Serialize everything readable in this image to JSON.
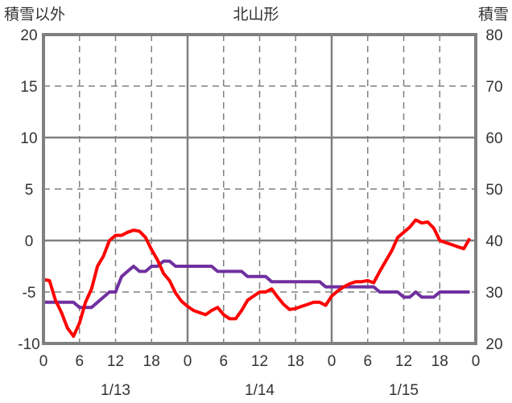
{
  "chart_data": {
    "type": "line",
    "title": "北山形",
    "left_axis_label": "積雪以外",
    "right_axis_label": "積雪",
    "left_ylim": [
      -10,
      20
    ],
    "right_ylim": [
      20,
      80
    ],
    "left_ticks": [
      "20",
      "15",
      "10",
      "5",
      "0",
      "-5",
      "-10"
    ],
    "right_ticks": [
      "80",
      "70",
      "60",
      "50",
      "40",
      "30",
      "20"
    ],
    "x_ticks": [
      "0",
      "6",
      "12",
      "18",
      "0",
      "6",
      "12",
      "18",
      "0",
      "6",
      "12",
      "18",
      "0"
    ],
    "date_labels": [
      "1/13",
      "1/14",
      "1/15"
    ],
    "xlim_hours": [
      0,
      72
    ],
    "grid": true,
    "series": [
      {
        "name": "積雪以外",
        "axis": "left",
        "color": "#ff0000",
        "values": [
          -3.8,
          -3.9,
          -5.8,
          -7,
          -8.5,
          -9.3,
          -8,
          -6,
          -4.7,
          -2.5,
          -1.5,
          0,
          0.5,
          0.5,
          0.8,
          1.0,
          0.9,
          0.3,
          -0.9,
          -1.9,
          -3.2,
          -3.9,
          -5.1,
          -5.9,
          -6.4,
          -6.8,
          -7.0,
          -7.2,
          -6.8,
          -6.5,
          -7.2,
          -7.6,
          -7.6,
          -6.8,
          -5.8,
          -5.4,
          -5.0,
          -5.0,
          -4.7,
          -5.5,
          -6.2,
          -6.7,
          -6.6,
          -6.4,
          -6.2,
          -6.0,
          -6.0,
          -6.3,
          -5.4,
          -4.9,
          -4.5,
          -4.2,
          -4.0,
          -4.0,
          -3.9,
          -4.1,
          -3.0,
          -2.0,
          -1.0,
          0.3,
          0.8,
          1.3,
          2.0,
          1.7,
          1.8,
          1.2,
          0.0,
          -0.2,
          -0.4,
          -0.6,
          -0.8,
          0.2
        ]
      },
      {
        "name": "積雪",
        "axis": "right",
        "color": "#7030a0",
        "values": [
          28,
          28,
          28,
          28,
          28,
          28,
          27,
          27,
          27,
          28,
          29,
          30,
          30,
          33,
          34,
          35,
          34,
          34,
          35,
          35,
          36,
          36,
          35,
          35,
          35,
          35,
          35,
          35,
          35,
          34,
          34,
          34,
          34,
          34,
          33,
          33,
          33,
          33,
          32,
          32,
          32,
          32,
          32,
          32,
          32,
          32,
          32,
          31,
          31,
          31,
          31,
          31,
          31,
          31,
          31,
          31,
          30,
          30,
          30,
          30,
          29,
          29,
          30,
          29,
          29,
          29,
          30,
          30,
          30,
          30,
          30,
          30
        ]
      }
    ]
  }
}
